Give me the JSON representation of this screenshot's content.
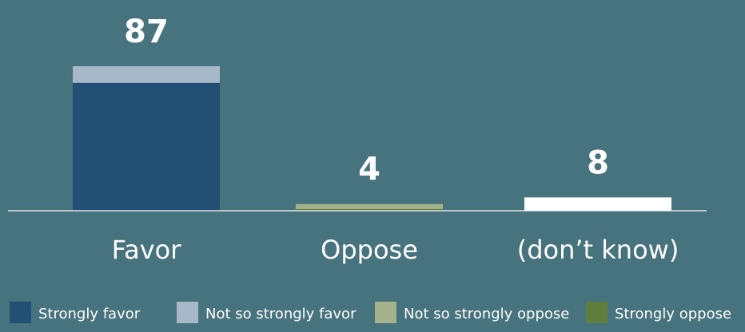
{
  "chart_data": {
    "type": "bar",
    "stacked": true,
    "categories": [
      "Favor",
      "Oppose",
      "(don’t know)"
    ],
    "totals": [
      "87",
      "4",
      "8"
    ],
    "series": [
      {
        "name": "Strongly favor",
        "color": "#234f74",
        "values": [
          77,
          0,
          0
        ]
      },
      {
        "name": "Not so strongly favor",
        "color": "#a7b8c9",
        "values": [
          10,
          0,
          0
        ]
      },
      {
        "name": "Strongly oppose",
        "color": "#5f7e3e",
        "values": [
          0,
          1,
          0
        ]
      },
      {
        "name": "Not so strongly oppose",
        "color": "#a4b38c",
        "values": [
          0,
          3,
          0
        ]
      },
      {
        "name": "(don’t know)",
        "color": "#ffffff",
        "values": [
          0,
          0,
          8
        ],
        "in_legend": false
      }
    ],
    "legend": [
      {
        "name": "Strongly favor",
        "color": "#234f74"
      },
      {
        "name": "Not so strongly favor",
        "color": "#a7b8c9"
      },
      {
        "name": "Not so strongly oppose",
        "color": "#a4b38c"
      },
      {
        "name": "Strongly oppose",
        "color": "#5f7e3e"
      }
    ],
    "legend_position": "bottom",
    "ylim": [
      0,
      100
    ],
    "grid": false,
    "title": "",
    "xlabel": "",
    "ylabel": ""
  }
}
